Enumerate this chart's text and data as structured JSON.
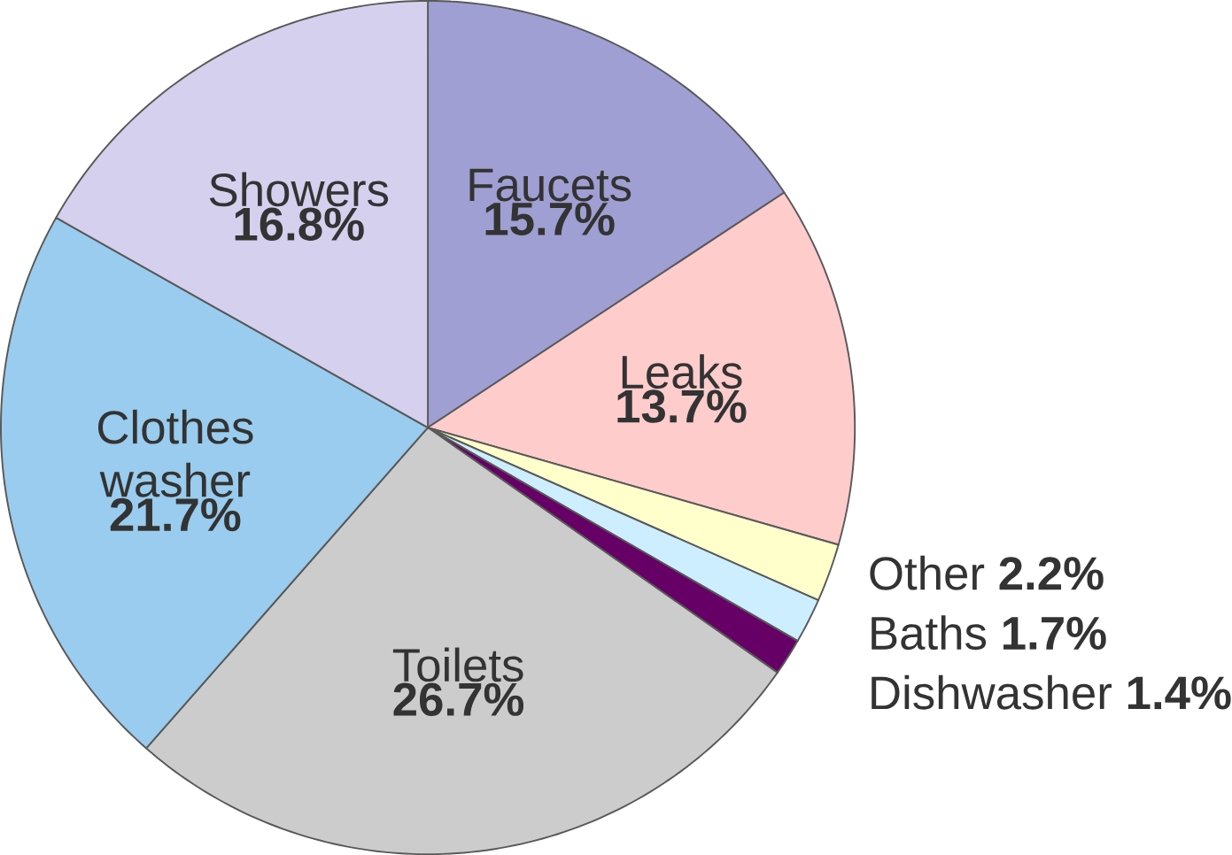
{
  "chart_data": {
    "type": "pie",
    "categories": [
      "Faucets",
      "Leaks",
      "Other",
      "Baths",
      "Dishwasher",
      "Toilets",
      "Clothes washer",
      "Showers"
    ],
    "values": [
      15.7,
      13.7,
      2.2,
      1.7,
      1.4,
      26.7,
      21.7,
      16.8
    ],
    "value_labels": [
      "15.7%",
      "13.7%",
      "2.2%",
      "1.7%",
      "1.4%",
      "26.7%",
      "21.7%",
      "16.8%"
    ],
    "colors": [
      "#9f9fd3",
      "#ffcccc",
      "#ffffcc",
      "#cceeff",
      "#660066",
      "#cccccc",
      "#99ccee",
      "#d4d0ee"
    ]
  }
}
